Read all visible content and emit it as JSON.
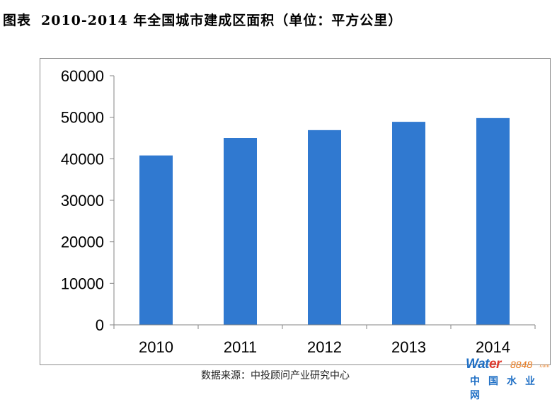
{
  "title": {
    "prefix": "图表",
    "text": "2010-2014 年全国城市建成区面积（单位：平方公里）"
  },
  "source": "数据来源：中投顾问产业研究中心",
  "watermark": {
    "word_a": "Wat",
    "word_b": "er",
    "number": "8848",
    "domain": ".com",
    "chinese": "中国水业网"
  },
  "colors": {
    "bar": "#3079d0",
    "watermark_blue": "#1f6fc5",
    "watermark_orange": "#e87a1e"
  },
  "chart_data": {
    "type": "bar",
    "categories": [
      "2010",
      "2011",
      "2012",
      "2013",
      "2014"
    ],
    "values": [
      40800,
      45000,
      46900,
      48900,
      49800
    ],
    "yticks": [
      "0",
      "10000",
      "20000",
      "30000",
      "40000",
      "50000",
      "60000"
    ],
    "ylim": [
      0,
      60000
    ],
    "title": "",
    "xlabel": "",
    "ylabel": "",
    "grid": false,
    "legend": false
  }
}
